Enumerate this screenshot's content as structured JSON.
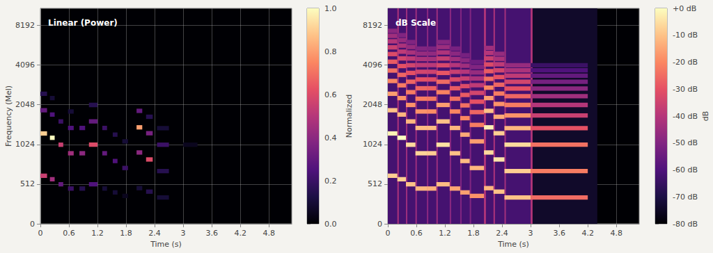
{
  "chart_data": [
    {
      "type": "heatmap",
      "title": "Linear (Power)",
      "x_label": "Time (s)",
      "y_label": "Frequency (Mel)",
      "xlim": [
        0,
        5.28
      ],
      "xticks": [
        0,
        0.6,
        1.2,
        1.8,
        2.4,
        3,
        3.6,
        4.2,
        4.8
      ],
      "ylim": [
        0,
        11025
      ],
      "yticks": [
        0,
        512,
        1024,
        2048,
        4096,
        8192
      ],
      "grid": true,
      "colorbar": {
        "label": "Normalized",
        "range": [
          0,
          1
        ],
        "ticks": [
          {
            "value": 0,
            "label": "0.0"
          },
          {
            "value": 0.2,
            "label": "0.2"
          },
          {
            "value": 0.4,
            "label": "0.4"
          },
          {
            "value": 0.6,
            "label": "0.6"
          },
          {
            "value": 0.8,
            "label": "0.8"
          },
          {
            "value": 1,
            "label": "1.0"
          }
        ]
      },
      "cells": [
        [
          0,
          0.14,
          620,
          0.55
        ],
        [
          0,
          0.14,
          1240,
          0.9
        ],
        [
          0,
          0.14,
          1860,
          0.3
        ],
        [
          0,
          0.14,
          2480,
          0.15
        ],
        [
          0.2,
          0.3,
          575,
          0.45
        ],
        [
          0.2,
          0.3,
          1150,
          1.0
        ],
        [
          0.2,
          0.3,
          1725,
          0.25
        ],
        [
          0.2,
          0.3,
          2300,
          0.1
        ],
        [
          0.38,
          0.48,
          510,
          0.3
        ],
        [
          0.38,
          0.48,
          1020,
          0.55
        ],
        [
          0.38,
          0.48,
          1530,
          0.2
        ],
        [
          0.58,
          0.7,
          455,
          0.2
        ],
        [
          0.58,
          0.7,
          910,
          0.45
        ],
        [
          0.58,
          0.7,
          1365,
          0.25
        ],
        [
          0.58,
          0.7,
          1820,
          0.1
        ],
        [
          0.82,
          0.94,
          455,
          0.15
        ],
        [
          0.82,
          0.94,
          910,
          0.4
        ],
        [
          0.82,
          0.94,
          1365,
          0.25
        ],
        [
          1.02,
          1.2,
          510,
          0.25
        ],
        [
          1.02,
          1.2,
          1020,
          0.6
        ],
        [
          1.02,
          1.2,
          1530,
          0.3
        ],
        [
          1.02,
          1.2,
          2040,
          0.15
        ],
        [
          1.3,
          1.4,
          455,
          0.1
        ],
        [
          1.3,
          1.4,
          910,
          0.3
        ],
        [
          1.3,
          1.4,
          1365,
          0.2
        ],
        [
          1.52,
          1.62,
          405,
          0.1
        ],
        [
          1.52,
          1.62,
          810,
          0.25
        ],
        [
          1.52,
          1.62,
          1215,
          0.15
        ],
        [
          1.72,
          1.84,
          360,
          0.05
        ],
        [
          1.72,
          1.84,
          720,
          0.2
        ],
        [
          1.72,
          1.84,
          1080,
          0.1
        ],
        [
          2.02,
          2.14,
          460,
          0.1
        ],
        [
          2.02,
          2.14,
          920,
          0.4
        ],
        [
          2.02,
          2.14,
          1380,
          0.8
        ],
        [
          2.02,
          2.14,
          1840,
          0.3
        ],
        [
          2.22,
          2.36,
          415,
          0.15
        ],
        [
          2.22,
          2.36,
          830,
          0.6
        ],
        [
          2.22,
          2.36,
          1245,
          0.35
        ],
        [
          2.22,
          2.36,
          1660,
          0.15
        ],
        [
          2.45,
          2.7,
          340,
          0.1
        ],
        [
          2.45,
          2.7,
          680,
          0.15
        ],
        [
          2.45,
          2.7,
          1020,
          0.2
        ],
        [
          2.45,
          2.7,
          1360,
          0.1
        ],
        [
          3,
          3.3,
          1020,
          0.05
        ]
      ]
    },
    {
      "type": "heatmap",
      "title": "dB Scale",
      "x_label": "Time (s)",
      "xlim": [
        0,
        5.28
      ],
      "xticks": [
        0,
        0.6,
        1.2,
        1.8,
        2.4,
        3,
        3.6,
        4.2,
        4.8
      ],
      "ylim": [
        0,
        11025
      ],
      "yticks": [
        0,
        512,
        1024,
        2048,
        4096,
        8192
      ],
      "grid": true,
      "colorbar": {
        "label": "dB",
        "range": [
          -80,
          0
        ],
        "ticks": [
          {
            "value": 0,
            "label": "+0 dB"
          },
          {
            "value": -10,
            "label": "-10 dB"
          },
          {
            "value": -20,
            "label": "-20 dB"
          },
          {
            "value": -30,
            "label": "-30 dB"
          },
          {
            "value": -40,
            "label": "-40 dB"
          },
          {
            "value": -50,
            "label": "-50 dB"
          },
          {
            "value": -60,
            "label": "-60 dB"
          },
          {
            "value": -70,
            "label": "-70 dB"
          },
          {
            "value": -80,
            "label": "-80 dB"
          }
        ]
      },
      "frames": [
        [
          0,
          3,
          -62
        ],
        [
          3,
          4.4,
          -74
        ],
        [
          0.2,
          0.23,
          -42
        ],
        [
          0.38,
          0.41,
          -45
        ],
        [
          0.58,
          0.61,
          -45
        ],
        [
          0.82,
          0.85,
          -48
        ],
        [
          1.02,
          1.05,
          -45
        ],
        [
          1.3,
          1.33,
          -48
        ],
        [
          1.52,
          1.55,
          -50
        ],
        [
          1.72,
          1.75,
          -50
        ],
        [
          2.02,
          2.06,
          -40
        ],
        [
          2.22,
          2.25,
          -42
        ],
        [
          2.45,
          2.48,
          -44
        ],
        [
          3,
          3.04,
          -40
        ]
      ],
      "cells": [
        [
          0,
          0.2,
          620,
          -8
        ],
        [
          0,
          0.2,
          1240,
          -2
        ],
        [
          0,
          0.2,
          1860,
          -10
        ],
        [
          0,
          0.2,
          2480,
          -16
        ],
        [
          0,
          0.2,
          3100,
          -20
        ],
        [
          0,
          0.2,
          3720,
          -24
        ],
        [
          0,
          0.2,
          4340,
          -28
        ],
        [
          0,
          0.2,
          4960,
          -32
        ],
        [
          0,
          0.2,
          5580,
          -36
        ],
        [
          0,
          0.2,
          6200,
          -40
        ],
        [
          0,
          0.2,
          6820,
          -44
        ],
        [
          0,
          0.2,
          7440,
          -48
        ],
        [
          0.2,
          0.38,
          575,
          -8
        ],
        [
          0.2,
          0.38,
          1150,
          0
        ],
        [
          0.2,
          0.38,
          1725,
          -12
        ],
        [
          0.2,
          0.38,
          2300,
          -18
        ],
        [
          0.2,
          0.38,
          2875,
          -22
        ],
        [
          0.2,
          0.38,
          3450,
          -26
        ],
        [
          0.2,
          0.38,
          4025,
          -30
        ],
        [
          0.2,
          0.38,
          4600,
          -34
        ],
        [
          0.2,
          0.38,
          5175,
          -38
        ],
        [
          0.2,
          0.38,
          5750,
          -42
        ],
        [
          0.2,
          0.38,
          6325,
          -46
        ],
        [
          0.2,
          0.38,
          6900,
          -50
        ],
        [
          0.38,
          0.58,
          510,
          -10
        ],
        [
          0.38,
          0.58,
          1020,
          -6
        ],
        [
          0.38,
          0.58,
          1530,
          -12
        ],
        [
          0.38,
          0.58,
          2040,
          -18
        ],
        [
          0.38,
          0.58,
          2550,
          -22
        ],
        [
          0.38,
          0.58,
          3060,
          -26
        ],
        [
          0.38,
          0.58,
          3570,
          -30
        ],
        [
          0.38,
          0.58,
          4080,
          -34
        ],
        [
          0.38,
          0.58,
          4590,
          -38
        ],
        [
          0.38,
          0.58,
          5100,
          -42
        ],
        [
          0.38,
          0.58,
          5610,
          -46
        ],
        [
          0.38,
          0.58,
          6120,
          -50
        ],
        [
          0.58,
          0.82,
          455,
          -12
        ],
        [
          0.58,
          0.82,
          910,
          -7
        ],
        [
          0.58,
          0.82,
          1365,
          -11
        ],
        [
          0.58,
          0.82,
          1820,
          -18
        ],
        [
          0.58,
          0.82,
          2275,
          -22
        ],
        [
          0.58,
          0.82,
          2730,
          -26
        ],
        [
          0.58,
          0.82,
          3185,
          -30
        ],
        [
          0.58,
          0.82,
          3640,
          -34
        ],
        [
          0.58,
          0.82,
          4095,
          -38
        ],
        [
          0.58,
          0.82,
          4550,
          -42
        ],
        [
          0.58,
          0.82,
          5005,
          -46
        ],
        [
          0.58,
          0.82,
          5460,
          -50
        ],
        [
          0.82,
          1.02,
          455,
          -13
        ],
        [
          0.82,
          1.02,
          910,
          -8
        ],
        [
          0.82,
          1.02,
          1365,
          -11
        ],
        [
          0.82,
          1.02,
          1820,
          -19
        ],
        [
          0.82,
          1.02,
          2275,
          -23
        ],
        [
          0.82,
          1.02,
          2730,
          -27
        ],
        [
          0.82,
          1.02,
          3185,
          -31
        ],
        [
          0.82,
          1.02,
          3640,
          -35
        ],
        [
          0.82,
          1.02,
          4095,
          -39
        ],
        [
          0.82,
          1.02,
          4550,
          -43
        ],
        [
          0.82,
          1.02,
          5005,
          -47
        ],
        [
          0.82,
          1.02,
          5460,
          -51
        ],
        [
          1.02,
          1.3,
          510,
          -11
        ],
        [
          1.02,
          1.3,
          1020,
          -5
        ],
        [
          1.02,
          1.3,
          1530,
          -10
        ],
        [
          1.02,
          1.3,
          2040,
          -16
        ],
        [
          1.02,
          1.3,
          2550,
          -21
        ],
        [
          1.02,
          1.3,
          3060,
          -25
        ],
        [
          1.02,
          1.3,
          3570,
          -29
        ],
        [
          1.02,
          1.3,
          4080,
          -33
        ],
        [
          1.02,
          1.3,
          4590,
          -37
        ],
        [
          1.02,
          1.3,
          5100,
          -41
        ],
        [
          1.02,
          1.3,
          5610,
          -45
        ],
        [
          1.02,
          1.3,
          6120,
          -49
        ],
        [
          1.3,
          1.52,
          455,
          -15
        ],
        [
          1.3,
          1.52,
          910,
          -10
        ],
        [
          1.3,
          1.52,
          1365,
          -12
        ],
        [
          1.3,
          1.52,
          1820,
          -20
        ],
        [
          1.3,
          1.52,
          2275,
          -24
        ],
        [
          1.3,
          1.52,
          2730,
          -28
        ],
        [
          1.3,
          1.52,
          3185,
          -32
        ],
        [
          1.3,
          1.52,
          3640,
          -36
        ],
        [
          1.3,
          1.52,
          4095,
          -40
        ],
        [
          1.3,
          1.52,
          4550,
          -44
        ],
        [
          1.3,
          1.52,
          5005,
          -48
        ],
        [
          1.3,
          1.52,
          5460,
          -52
        ],
        [
          1.52,
          1.72,
          405,
          -16
        ],
        [
          1.52,
          1.72,
          810,
          -11
        ],
        [
          1.52,
          1.72,
          1215,
          -14
        ],
        [
          1.52,
          1.72,
          1620,
          -20
        ],
        [
          1.52,
          1.72,
          2025,
          -24
        ],
        [
          1.52,
          1.72,
          2430,
          -28
        ],
        [
          1.52,
          1.72,
          2835,
          -32
        ],
        [
          1.52,
          1.72,
          3240,
          -36
        ],
        [
          1.52,
          1.72,
          3645,
          -40
        ],
        [
          1.52,
          1.72,
          4050,
          -44
        ],
        [
          1.52,
          1.72,
          4455,
          -48
        ],
        [
          1.52,
          1.72,
          4860,
          -52
        ],
        [
          1.72,
          2.02,
          360,
          -18
        ],
        [
          1.72,
          2.02,
          720,
          -12
        ],
        [
          1.72,
          2.02,
          1080,
          -16
        ],
        [
          1.72,
          2.02,
          1440,
          -22
        ],
        [
          1.72,
          2.02,
          1800,
          -26
        ],
        [
          1.72,
          2.02,
          2160,
          -30
        ],
        [
          1.72,
          2.02,
          2520,
          -34
        ],
        [
          1.72,
          2.02,
          2880,
          -38
        ],
        [
          1.72,
          2.02,
          3240,
          -42
        ],
        [
          1.72,
          2.02,
          3600,
          -46
        ],
        [
          1.72,
          2.02,
          3960,
          -50
        ],
        [
          1.72,
          2.02,
          4320,
          -54
        ],
        [
          2.02,
          2.22,
          460,
          -12
        ],
        [
          2.02,
          2.22,
          920,
          -6
        ],
        [
          2.02,
          2.22,
          1380,
          -2
        ],
        [
          2.02,
          2.22,
          1840,
          -10
        ],
        [
          2.02,
          2.22,
          2300,
          -16
        ],
        [
          2.02,
          2.22,
          2760,
          -20
        ],
        [
          2.02,
          2.22,
          3220,
          -24
        ],
        [
          2.02,
          2.22,
          3680,
          -28
        ],
        [
          2.02,
          2.22,
          4140,
          -32
        ],
        [
          2.02,
          2.22,
          4600,
          -36
        ],
        [
          2.02,
          2.22,
          5060,
          -40
        ],
        [
          2.02,
          2.22,
          5520,
          -44
        ],
        [
          2.22,
          2.45,
          415,
          -10
        ],
        [
          2.22,
          2.45,
          830,
          -4
        ],
        [
          2.22,
          2.45,
          1245,
          -8
        ],
        [
          2.22,
          2.45,
          1660,
          -14
        ],
        [
          2.22,
          2.45,
          2075,
          -18
        ],
        [
          2.22,
          2.45,
          2490,
          -22
        ],
        [
          2.22,
          2.45,
          2905,
          -26
        ],
        [
          2.22,
          2.45,
          3320,
          -30
        ],
        [
          2.22,
          2.45,
          3735,
          -34
        ],
        [
          2.22,
          2.45,
          4150,
          -38
        ],
        [
          2.22,
          2.45,
          4565,
          -42
        ],
        [
          2.22,
          2.45,
          4980,
          -46
        ],
        [
          2.45,
          3,
          340,
          -10
        ],
        [
          2.45,
          3,
          680,
          -8
        ],
        [
          2.45,
          3,
          1020,
          -6
        ],
        [
          2.45,
          3,
          1360,
          -12
        ],
        [
          2.45,
          3,
          1700,
          -18
        ],
        [
          2.45,
          3,
          2040,
          -22
        ],
        [
          2.45,
          3,
          2380,
          -26
        ],
        [
          2.45,
          3,
          2720,
          -30
        ],
        [
          2.45,
          3,
          3060,
          -34
        ],
        [
          2.45,
          3,
          3400,
          -38
        ],
        [
          2.45,
          3,
          3740,
          -42
        ],
        [
          2.45,
          3,
          4080,
          -46
        ],
        [
          3,
          4.2,
          340,
          -25
        ],
        [
          3,
          4.2,
          680,
          -22
        ],
        [
          3,
          4.2,
          1020,
          -24
        ],
        [
          3,
          4.2,
          1360,
          -30
        ],
        [
          3,
          4.2,
          1700,
          -36
        ],
        [
          3,
          4.2,
          2040,
          -40
        ],
        [
          3,
          4.2,
          2380,
          -44
        ],
        [
          3,
          4.2,
          2720,
          -48
        ],
        [
          3,
          4.2,
          3060,
          -52
        ],
        [
          3,
          4.2,
          3400,
          -56
        ],
        [
          3,
          4.2,
          3740,
          -60
        ],
        [
          3,
          4.2,
          4080,
          -64
        ]
      ]
    }
  ]
}
